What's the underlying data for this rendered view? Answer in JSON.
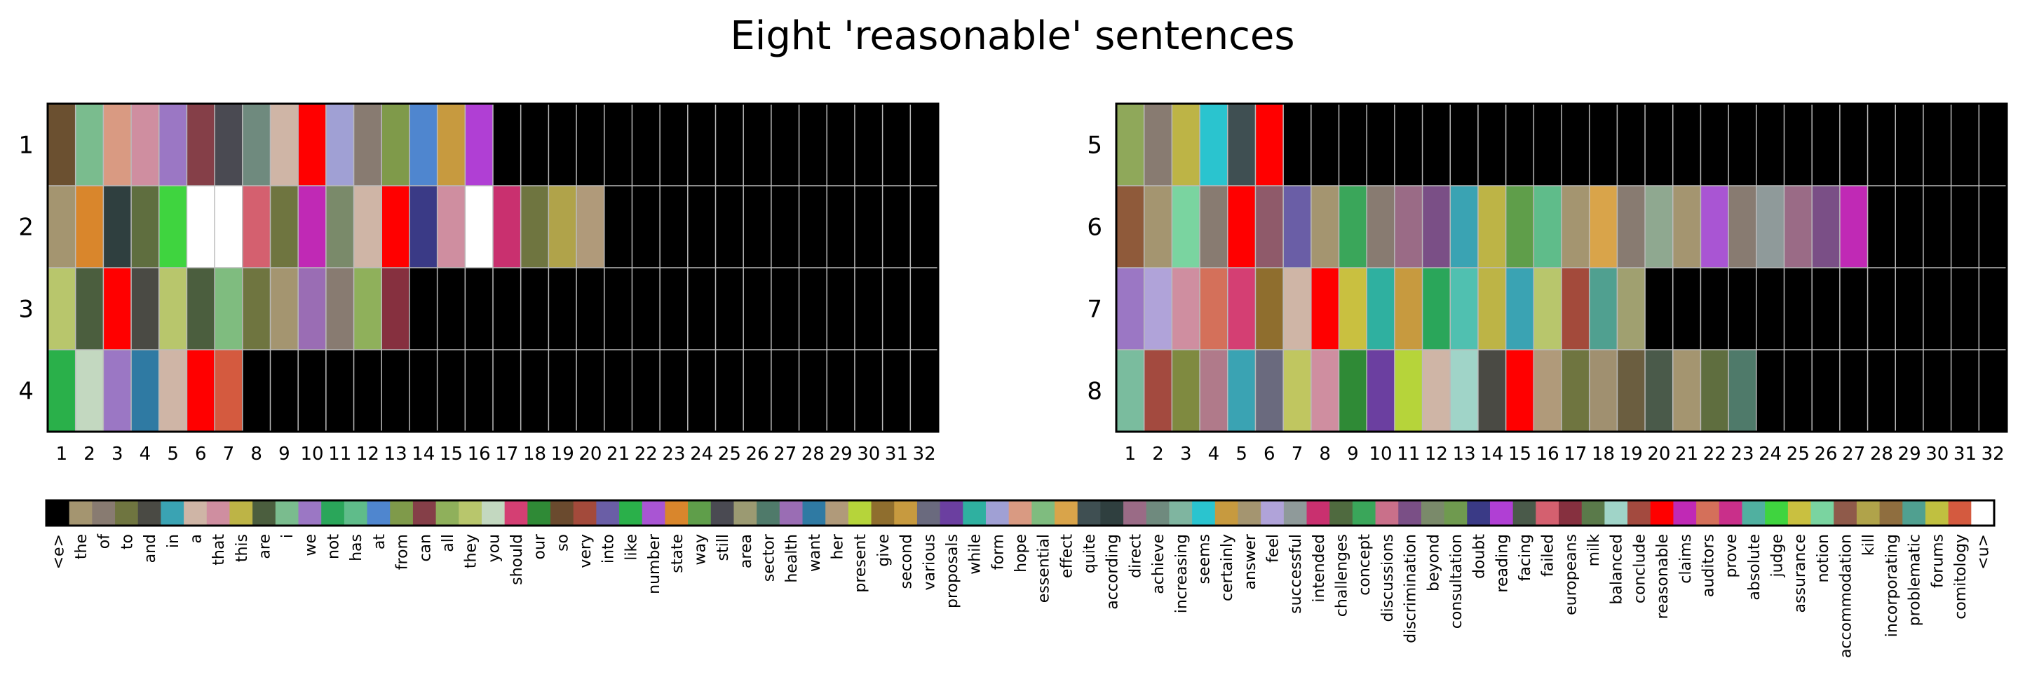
{
  "title": "Eight 'reasonable' sentences",
  "colors": {
    "end": "#000000",
    "unknown": "#ffffff",
    "grid": "#bbbbbb"
  },
  "chart_data": {
    "type": "heatmap",
    "title": "Eight 'reasonable' sentences",
    "palette": [
      {
        "word": "<e>",
        "color": "#000000"
      },
      {
        "word": "the",
        "color": "#a49570"
      },
      {
        "word": "of",
        "color": "#887b71"
      },
      {
        "word": "to",
        "color": "#6f7540"
      },
      {
        "word": "and",
        "color": "#4a4a44"
      },
      {
        "word": "in",
        "color": "#3aa3b3"
      },
      {
        "word": "a",
        "color": "#cfb5a6"
      },
      {
        "word": "that",
        "color": "#cf8ea0"
      },
      {
        "word": "this",
        "color": "#bdb446"
      },
      {
        "word": "are",
        "color": "#4b5e3e"
      },
      {
        "word": "i",
        "color": "#7abc8e"
      },
      {
        "word": "we",
        "color": "#9b77c4"
      },
      {
        "word": "not",
        "color": "#2aa65a"
      },
      {
        "word": "has",
        "color": "#5fbc8a"
      },
      {
        "word": "at",
        "color": "#4f86cf"
      },
      {
        "word": "from",
        "color": "#7f9a4a"
      },
      {
        "word": "can",
        "color": "#853f48"
      },
      {
        "word": "all",
        "color": "#8fb05b"
      },
      {
        "word": "they",
        "color": "#b8c66c"
      },
      {
        "word": "you",
        "color": "#c3d8c0"
      },
      {
        "word": "should",
        "color": "#d43f73"
      },
      {
        "word": "our",
        "color": "#2f8a36"
      },
      {
        "word": "so",
        "color": "#6a4a2e"
      },
      {
        "word": "very",
        "color": "#a34a3b"
      },
      {
        "word": "into",
        "color": "#6a5ea6"
      },
      {
        "word": "like",
        "color": "#2ab04a"
      },
      {
        "word": "number",
        "color": "#a955d3"
      },
      {
        "word": "state",
        "color": "#d9862c"
      },
      {
        "word": "way",
        "color": "#5f9e4a"
      },
      {
        "word": "still",
        "color": "#4a4a52"
      },
      {
        "word": "area",
        "color": "#9b9a72"
      },
      {
        "word": "sector",
        "color": "#4f7a6a"
      },
      {
        "word": "health",
        "color": "#9a6db4"
      },
      {
        "word": "want",
        "color": "#2f7aa3"
      },
      {
        "word": "her",
        "color": "#b09a7a"
      },
      {
        "word": "present",
        "color": "#b6d43a"
      },
      {
        "word": "give",
        "color": "#8f6e2e"
      },
      {
        "word": "second",
        "color": "#c79a3f"
      },
      {
        "word": "various",
        "color": "#6a6a7e"
      },
      {
        "word": "proposals",
        "color": "#6b3fa0"
      },
      {
        "word": "while",
        "color": "#2fb0a0"
      },
      {
        "word": "form",
        "color": "#a0a0d4"
      },
      {
        "word": "hope",
        "color": "#d99a82"
      },
      {
        "word": "essential",
        "color": "#7fbc7f"
      },
      {
        "word": "effect",
        "color": "#d9a44a"
      },
      {
        "word": "quite",
        "color": "#3f4f52"
      },
      {
        "word": "according",
        "color": "#2f3f3f"
      },
      {
        "word": "direct",
        "color": "#9a6b86"
      },
      {
        "word": "achieve",
        "color": "#6f8a7e"
      },
      {
        "word": "increasing",
        "color": "#7fb5a0"
      },
      {
        "word": "seems",
        "color": "#2ac4cf"
      },
      {
        "word": "certainly",
        "color": "#c79a3f"
      },
      {
        "word": "answer",
        "color": "#a49570"
      },
      {
        "word": "feel",
        "color": "#b0a3d9"
      },
      {
        "word": "successful",
        "color": "#8f9a9a"
      },
      {
        "word": "intended",
        "color": "#c9306f"
      },
      {
        "word": "challenges",
        "color": "#4f6a3f"
      },
      {
        "word": "concept",
        "color": "#3aa65a"
      },
      {
        "word": "discussions",
        "color": "#c9708a"
      },
      {
        "word": "discrimination",
        "color": "#7a4f86"
      },
      {
        "word": "beyond",
        "color": "#7a8a6a"
      },
      {
        "word": "consultation",
        "color": "#6f9a4f"
      },
      {
        "word": "doubt",
        "color": "#3a3a86"
      },
      {
        "word": "reading",
        "color": "#b03fd4"
      },
      {
        "word": "facing",
        "color": "#4a5a4a"
      },
      {
        "word": "failed",
        "color": "#d4606f"
      },
      {
        "word": "europeans",
        "color": "#86303f"
      },
      {
        "word": "milk",
        "color": "#5a7a4a"
      },
      {
        "word": "balanced",
        "color": "#a0d4c8"
      },
      {
        "word": "conclude",
        "color": "#a34a3f"
      },
      {
        "word": "reasonable",
        "color": "#ff0000"
      },
      {
        "word": "claims",
        "color": "#c029b5"
      },
      {
        "word": "auditors",
        "color": "#d4705a"
      },
      {
        "word": "prove",
        "color": "#c92f8a"
      },
      {
        "word": "absolute",
        "color": "#50b0a0"
      },
      {
        "word": "judge",
        "color": "#3fd43f"
      },
      {
        "word": "assurance",
        "color": "#c9c040"
      },
      {
        "word": "notion",
        "color": "#7ad4a0"
      },
      {
        "word": "accommodation",
        "color": "#8f5a4a"
      },
      {
        "word": "kill",
        "color": "#b0a34a"
      },
      {
        "word": "incorporating",
        "color": "#8f6e3f"
      },
      {
        "word": "problematic",
        "color": "#50a090"
      },
      {
        "word": "forums",
        "color": "#c0c040"
      },
      {
        "word": "comitology",
        "color": "#d45a3f"
      },
      {
        "word": "<u>",
        "color": "#ffffff"
      }
    ],
    "panels": [
      {
        "row_labels": [
          "1",
          "2",
          "3",
          "4"
        ],
        "x_ticks": [
          "1",
          "2",
          "3",
          "4",
          "5",
          "6",
          "7",
          "8",
          "9",
          "10",
          "11",
          "12",
          "13",
          "14",
          "15",
          "16",
          "17",
          "18",
          "19",
          "20",
          "21",
          "22",
          "23",
          "24",
          "25",
          "26",
          "27",
          "28",
          "29",
          "30",
          "31",
          "32"
        ],
        "rows": [
          [
            "#6b5030",
            "#7abc8e",
            "#d99a82",
            "#cf8ea0",
            "#9b77c4",
            "#853f48",
            "#4a4a52",
            "#6f8a7e",
            "#cfb5a6",
            "#ff0000",
            "#a0a0d4",
            "#887b71",
            "#7f9a4a",
            "#4f86cf",
            "#c79a3f",
            "#b03fd4"
          ],
          [
            "#a49570",
            "#d9862c",
            "#2f3f3f",
            "#5f6e3f",
            "#3fd43f",
            "#ffffff",
            "#ffffff",
            "#d4606f",
            "#6f7540",
            "#c029b5",
            "#7a8a6a",
            "#cfb5a6",
            "#ff0000",
            "#3a3a86",
            "#cf8ea0",
            "#ffffff",
            "#c9306f",
            "#6f7540",
            "#b0a34a",
            "#b09a7a"
          ],
          [
            "#b8c66c",
            "#4b5e3e",
            "#ff0000",
            "#4a4a44",
            "#b8c66c",
            "#4b5e3e",
            "#7fbc7f",
            "#6f7540",
            "#a49570",
            "#9a6db4",
            "#887b71",
            "#8fb05b",
            "#86303f"
          ],
          [
            "#2ab04a",
            "#c3d8c0",
            "#9b77c4",
            "#2f7aa3",
            "#cfb5a6",
            "#ff0000",
            "#d45a3f"
          ]
        ]
      },
      {
        "row_labels": [
          "5",
          "6",
          "7",
          "8"
        ],
        "x_ticks": [
          "1",
          "2",
          "3",
          "4",
          "5",
          "6",
          "7",
          "8",
          "9",
          "10",
          "11",
          "12",
          "13",
          "14",
          "15",
          "16",
          "17",
          "18",
          "19",
          "20",
          "21",
          "22",
          "23",
          "24",
          "25",
          "26",
          "27",
          "28",
          "29",
          "30",
          "31",
          "32"
        ],
        "rows": [
          [
            "#8fa85a",
            "#887b71",
            "#bdb446",
            "#2ac4cf",
            "#3f4f52",
            "#ff0000"
          ],
          [
            "#8f5a3a",
            "#a49570",
            "#7ad4a0",
            "#887b71",
            "#ff0000",
            "#8f5a6a",
            "#6a5ea6",
            "#a49570",
            "#3aa65a",
            "#887b71",
            "#9a6b86",
            "#7a4f86",
            "#3aa3b3",
            "#bdb446",
            "#5f9e4a",
            "#5fbc8a",
            "#a49570",
            "#d9a44a",
            "#887b71",
            "#8fa890",
            "#a49570",
            "#a955d3",
            "#887b71",
            "#8f9a9a",
            "#9a6b86",
            "#7a4f86",
            "#c029b5"
          ],
          [
            "#9b77c4",
            "#b0a3d9",
            "#cf8ea0",
            "#d4705a",
            "#d43f73",
            "#8f6e2e",
            "#cfb5a6",
            "#ff0000",
            "#c9c040",
            "#2fb0a0",
            "#c79a3f",
            "#2aa65a",
            "#50c0b0",
            "#bdb446",
            "#3aa3b3",
            "#b8c66c",
            "#a34a3b",
            "#50a090",
            "#a0a070"
          ],
          [
            "#7abc9e",
            "#a34a3f",
            "#7f8a40",
            "#b07a8a",
            "#3aa3b3",
            "#6a6a7e",
            "#c0c660",
            "#cf8ea0",
            "#2f8a36",
            "#6b3fa0",
            "#b6d43a",
            "#cfb5a6",
            "#a0d4c8",
            "#4a4a44",
            "#ff0000",
            "#b09a7a",
            "#6f7540",
            "#a09070",
            "#6b5e40",
            "#4a5a4a",
            "#a49570",
            "#5f6e3f",
            "#4f7a6a"
          ]
        ]
      }
    ]
  }
}
